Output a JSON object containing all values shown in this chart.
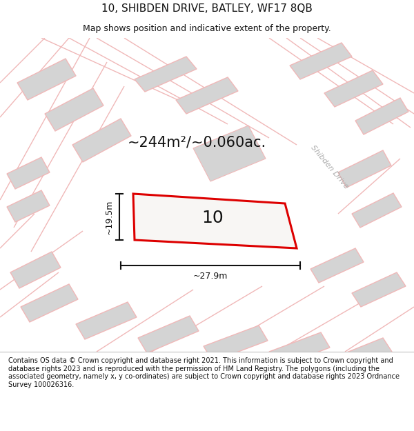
{
  "title_line1": "10, SHIBDEN DRIVE, BATLEY, WF17 8QB",
  "title_line2": "Map shows position and indicative extent of the property.",
  "area_text": "~244m²/~0.060ac.",
  "property_number": "10",
  "dim_width": "~27.9m",
  "dim_height": "~19.5m",
  "road_label": "Shibden Drive",
  "footer_text": "Contains OS data © Crown copyright and database right 2021. This information is subject to Crown copyright and database rights 2023 and is reproduced with the permission of HM Land Registry. The polygons (including the associated geometry, namely x, y co-ordinates) are subject to Crown copyright and database rights 2023 Ordnance Survey 100026316.",
  "bg_color": "#f8f6f4",
  "map_bg": "#f8f6f4",
  "property_fill": "#f8f6f4",
  "property_edge": "#dd0000",
  "neighbor_fill": "#d4d4d4",
  "neighbor_edge": "#f0b8b8",
  "road_line_color": "#f0b8b8",
  "dim_line_color": "#111111",
  "text_color": "#111111",
  "footer_color": "#111111",
  "title_fontsize": 11,
  "subtitle_fontsize": 9,
  "area_fontsize": 15,
  "number_fontsize": 18,
  "dim_fontsize": 9,
  "footer_fontsize": 7
}
